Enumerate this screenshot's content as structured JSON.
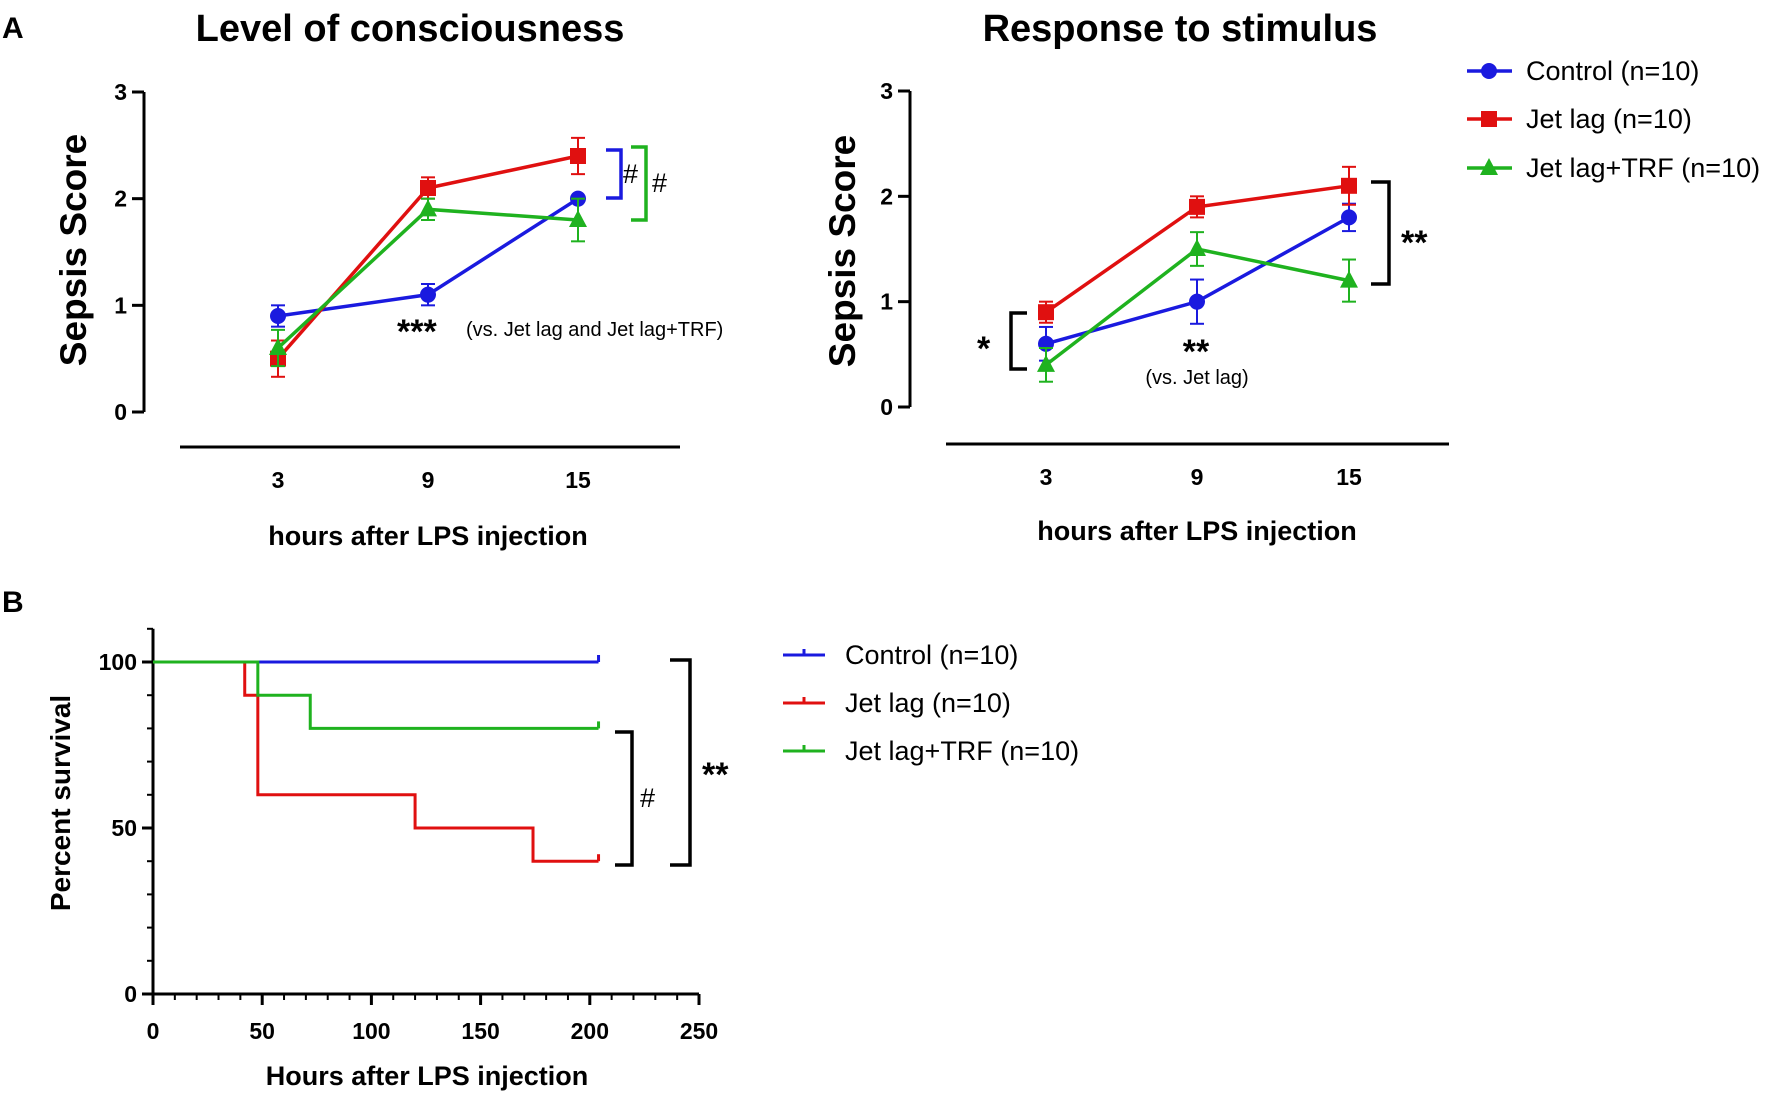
{
  "panels": {
    "a": "A",
    "b": "B"
  },
  "colors": {
    "control": "#1a1adf",
    "jetlag": "#e01010",
    "trf": "#1fb21f"
  },
  "legend_top": [
    "Control (n=10)",
    "Jet lag (n=10)",
    "Jet lag+TRF (n=10)"
  ],
  "legend_bottom": [
    "Control (n=10)",
    "Jet lag (n=10)",
    "Jet lag+TRF (n=10)"
  ],
  "annotations": {
    "a1_bracket_blue": "#",
    "a1_bracket_green": "#",
    "a1_stars": "***",
    "a1_note": "(vs. Jet lag and Jet lag+TRF)",
    "a2_left": "*",
    "a2_right": "**",
    "a2_stars": "**",
    "a2_note": "(vs. Jet lag)",
    "b_hash": "#",
    "b_stars": "**"
  },
  "chart_data": [
    {
      "type": "line",
      "title": "Level of consciousness",
      "xlabel": "hours after LPS injection",
      "ylabel": "Sepsis Score",
      "categories": [
        "3",
        "9",
        "15"
      ],
      "ylim": [
        0,
        3
      ],
      "yticks": [
        "0",
        "1",
        "2",
        "3"
      ],
      "series": [
        {
          "name": "Control (n=10)",
          "values": [
            0.9,
            1.1,
            2.0
          ],
          "errors": [
            0.1,
            0.1,
            0.0
          ]
        },
        {
          "name": "Jet lag (n=10)",
          "values": [
            0.5,
            2.1,
            2.4
          ],
          "errors": [
            0.17,
            0.1,
            0.17
          ]
        },
        {
          "name": "Jet lag+TRF (n=10)",
          "values": [
            0.6,
            1.9,
            1.8
          ],
          "errors": [
            0.17,
            0.1,
            0.2
          ]
        }
      ]
    },
    {
      "type": "line",
      "title": "Response to stimulus",
      "xlabel": "hours after LPS injection",
      "ylabel": "Sepsis Score",
      "categories": [
        "3",
        "9",
        "15"
      ],
      "ylim": [
        0,
        3
      ],
      "yticks": [
        "0",
        "1",
        "2",
        "3"
      ],
      "series": [
        {
          "name": "Control (n=10)",
          "values": [
            0.6,
            1.0,
            1.8
          ],
          "errors": [
            0.16,
            0.21,
            0.13
          ]
        },
        {
          "name": "Jet lag (n=10)",
          "values": [
            0.9,
            1.9,
            2.1
          ],
          "errors": [
            0.1,
            0.1,
            0.18
          ]
        },
        {
          "name": "Jet lag+TRF (n=10)",
          "values": [
            0.4,
            1.5,
            1.2
          ],
          "errors": [
            0.16,
            0.16,
            0.2
          ]
        }
      ]
    },
    {
      "type": "line",
      "subtype": "survival-step",
      "xlabel": "Hours after LPS injection",
      "ylabel": "Percent survival",
      "xlim": [
        0,
        250
      ],
      "ylim": [
        0,
        110
      ],
      "xticks": [
        "0",
        "50",
        "100",
        "150",
        "200",
        "250"
      ],
      "yticks": [
        "0",
        "50",
        "100"
      ],
      "series": [
        {
          "name": "Control (n=10)",
          "x": [
            0,
            204
          ],
          "y": [
            100,
            100
          ]
        },
        {
          "name": "Jet lag (n=10)",
          "x": [
            0,
            42,
            48,
            120,
            174,
            204
          ],
          "y": [
            100,
            90,
            60,
            50,
            40,
            40
          ]
        },
        {
          "name": "Jet lag+TRF (n=10)",
          "x": [
            0,
            48,
            72,
            204
          ],
          "y": [
            100,
            90,
            80,
            80
          ]
        }
      ]
    }
  ]
}
